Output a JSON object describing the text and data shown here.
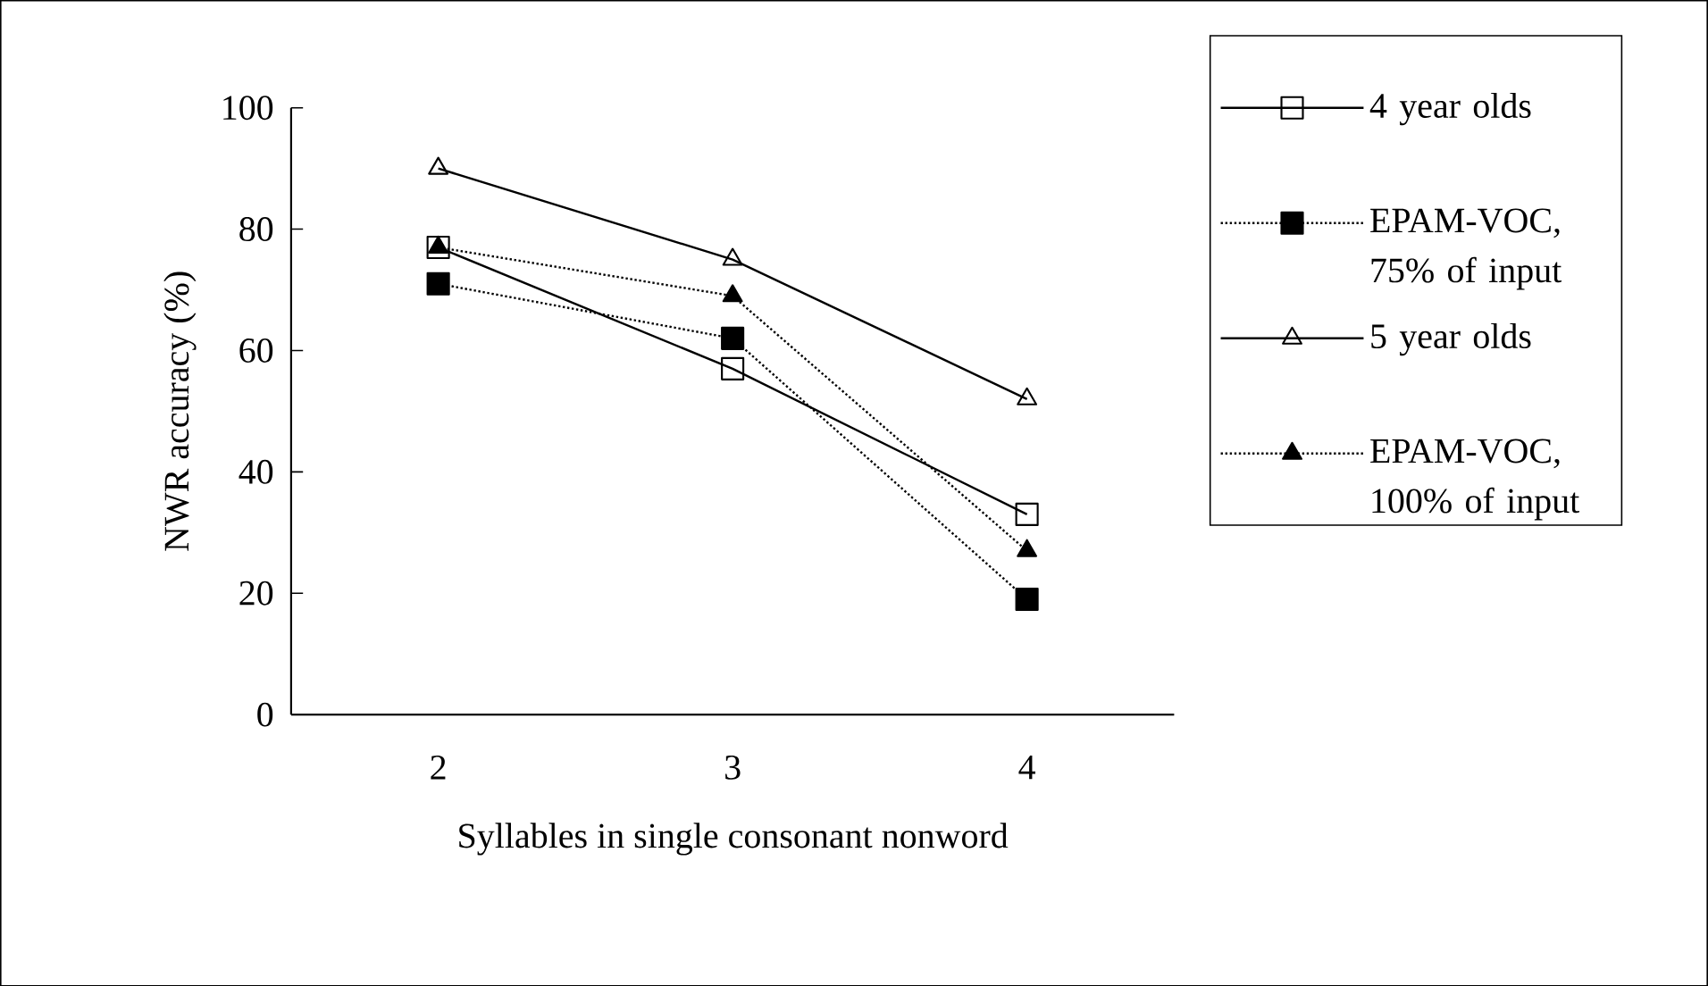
{
  "chart_data": {
    "type": "line",
    "xlabel": "Syllables in single consonant nonword",
    "ylabel": "NWR accuracy (%)",
    "categories": [
      "2",
      "3",
      "4"
    ],
    "ylim": [
      0,
      100
    ],
    "yticks": [
      0,
      20,
      40,
      60,
      80,
      100
    ],
    "grid": false,
    "legend": "right",
    "series": [
      {
        "name": "4 year olds",
        "color": "#000000",
        "marker": "square",
        "line_style": "solid",
        "values": [
          77,
          57,
          33
        ]
      },
      {
        "name": "EPAM-VOC, 75% of input",
        "color": "#000000",
        "marker": "square",
        "line_style": "dotted",
        "values": [
          71,
          62,
          19
        ]
      },
      {
        "name": "5 year olds",
        "color": "#000000",
        "marker": "triangle",
        "line_style": "solid",
        "values": [
          90,
          75,
          52
        ]
      },
      {
        "name": "EPAM-VOC, 100% of input",
        "color": "#000000",
        "marker": "triangle",
        "line_style": "dotted",
        "values": [
          77,
          69,
          27
        ]
      }
    ]
  }
}
